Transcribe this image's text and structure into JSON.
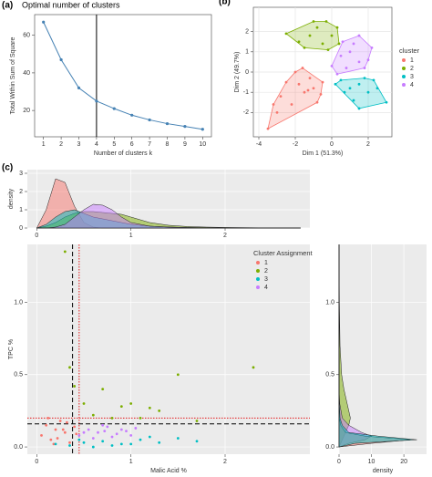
{
  "chart_data": [
    {
      "type": "line",
      "panel": "(a)",
      "title": "Optimal number of clusters",
      "xlabel": "Number of clusters k",
      "ylabel": "Total Within Sum of Square",
      "x": [
        1,
        2,
        3,
        4,
        5,
        6,
        7,
        8,
        9,
        10
      ],
      "values": [
        67,
        47,
        32,
        25,
        21,
        17.5,
        15,
        13,
        11.5,
        10
      ],
      "color": "#4682b4",
      "xlim": [
        0.5,
        10.5
      ],
      "ylim": [
        6,
        71
      ],
      "xticks": [
        1,
        2,
        3,
        4,
        5,
        6,
        7,
        8,
        9,
        10
      ],
      "yticks": [
        20,
        40,
        60
      ],
      "grid": false,
      "background": "#ffffff",
      "reference_lines": [
        {
          "axis": "x",
          "value": 4,
          "color": "#000000",
          "style": "solid"
        }
      ]
    },
    {
      "type": "scatter",
      "panel": "(b)",
      "xlabel": "Dim 1 (51.3%)",
      "ylabel": "Dim 2 (49.7%)",
      "legend_title": "cluster",
      "legend": "right",
      "hulls": true,
      "xlim": [
        -4.3,
        3.3
      ],
      "ylim": [
        -3.2,
        3.2
      ],
      "xticks": [
        -4,
        -2,
        0,
        2
      ],
      "yticks": [
        -2,
        -1,
        0,
        1,
        2
      ],
      "grid": true,
      "background": "#ffffff",
      "series": [
        {
          "name": "1",
          "color": "#f8766d",
          "x": [
            -3.5,
            -3,
            -2.8,
            -2.5,
            -2,
            -1.8,
            -1.5,
            -1.2,
            -1,
            -0.8,
            -0.5,
            -2.2,
            -1.6,
            -0.6,
            -3.2,
            -1.3
          ],
          "values": [
            -2.8,
            -2,
            -1.2,
            -0.5,
            0,
            -0.6,
            -1,
            -0.3,
            -0.8,
            -1.5,
            -0.5,
            -1.6,
            0.2,
            -1.1,
            -1.6,
            -0.9
          ]
        },
        {
          "name": "2",
          "color": "#7cae00",
          "x": [
            -2.5,
            -1.8,
            -1.2,
            -0.8,
            -0.3,
            0,
            -0.5,
            -1.5,
            0.3,
            -1,
            0.4,
            -0.2
          ],
          "values": [
            1.9,
            1.5,
            1.8,
            2.2,
            2.5,
            1.8,
            1.4,
            1.2,
            2.2,
            2.5,
            1.4,
            1.1
          ]
        },
        {
          "name": "3",
          "color": "#00bfc4",
          "x": [
            0.5,
            1,
            1.5,
            2,
            2.5,
            3,
            1.2,
            1.8,
            0.7,
            2.3,
            1.5,
            0.2
          ],
          "values": [
            -0.4,
            -0.8,
            -0.6,
            -1,
            -0.8,
            -1.5,
            -1.4,
            -0.3,
            -1,
            -0.4,
            -1.8,
            -0.6
          ]
        },
        {
          "name": "4",
          "color": "#c77cff",
          "x": [
            0,
            0.5,
            1,
            1.5,
            2,
            0.8,
            1.2,
            0.3,
            1.8,
            2.2,
            0.6,
            1.5
          ],
          "values": [
            0.3,
            0.8,
            1,
            0.5,
            0.6,
            0.2,
            1.4,
            -0.1,
            0.2,
            1.2,
            1.5,
            1.8
          ]
        }
      ]
    },
    {
      "type": "density",
      "panel": "(c)",
      "ylabel": "density",
      "orientation": "vertical",
      "xlim": [
        -0.1,
        2.9
      ],
      "ylim": [
        0,
        3.2
      ],
      "xticks": [
        0,
        1,
        2
      ],
      "yticks": [
        0,
        1,
        2,
        3
      ],
      "grid": true,
      "background": "#ebebeb",
      "x": [
        0,
        0.1,
        0.2,
        0.3,
        0.4,
        0.5,
        0.6,
        0.7,
        0.8,
        0.9,
        1.0,
        1.2,
        1.4,
        1.6,
        1.8,
        2.0,
        2.4,
        2.8
      ],
      "series": [
        {
          "name": "1",
          "color": "#f8766d",
          "values": [
            0,
            1.0,
            2.7,
            2.5,
            1.2,
            0.3,
            0.05,
            0,
            0,
            0,
            0,
            0,
            0,
            0,
            0,
            0,
            0,
            0
          ]
        },
        {
          "name": "2",
          "color": "#7cae00",
          "values": [
            0,
            0.1,
            0.3,
            0.6,
            0.8,
            0.9,
            0.9,
            0.85,
            0.8,
            0.75,
            0.6,
            0.3,
            0.15,
            0.08,
            0.05,
            0.03,
            0.01,
            0
          ]
        },
        {
          "name": "3",
          "color": "#00bfc4",
          "values": [
            0,
            0.2,
            0.6,
            0.9,
            1.0,
            0.8,
            0.6,
            0.5,
            0.4,
            0.3,
            0.2,
            0.1,
            0.05,
            0.03,
            0.02,
            0.01,
            0,
            0
          ]
        },
        {
          "name": "4",
          "color": "#c77cff",
          "values": [
            0,
            0,
            0.05,
            0.2,
            0.6,
            1.0,
            1.3,
            1.25,
            1.0,
            0.6,
            0.3,
            0.1,
            0.05,
            0.02,
            0.01,
            0,
            0,
            0
          ]
        }
      ]
    },
    {
      "type": "scatter",
      "xlabel": "Malic Acid %",
      "ylabel": "TPC %",
      "legend_title": "Cluster Assignment",
      "legend": "top-right",
      "xlim": [
        -0.1,
        2.9
      ],
      "ylim": [
        -0.05,
        1.4
      ],
      "xticks": [
        0,
        1,
        2
      ],
      "yticks": [
        {
          "value": 0,
          "label": "0.0"
        },
        0.5,
        {
          "value": 1,
          "label": "1.0"
        }
      ],
      "grid": true,
      "background": "#ebebeb",
      "reference_lines": [
        {
          "axis": "x",
          "value": 0.38,
          "color": "#000000",
          "style": "dashed"
        },
        {
          "axis": "x",
          "value": 0.45,
          "color": "#e41a1c",
          "style": "dotted"
        },
        {
          "axis": "y",
          "value": 0.16,
          "color": "#000000",
          "style": "dashed"
        },
        {
          "axis": "y",
          "value": 0.2,
          "color": "#e41a1c",
          "style": "dotted"
        }
      ],
      "series": [
        {
          "name": "1",
          "color": "#f8766d",
          "x": [
            0.05,
            0.1,
            0.15,
            0.2,
            0.25,
            0.3,
            0.35,
            0.4,
            0.12,
            0.22,
            0.32,
            0.42,
            0.18,
            0.28
          ],
          "values": [
            0.08,
            0.15,
            0.05,
            0.12,
            0.18,
            0.1,
            0.03,
            0.14,
            0.2,
            0.06,
            0.17,
            0.09,
            0.02,
            0.12
          ]
        },
        {
          "name": "2",
          "color": "#7cae00",
          "x": [
            0.3,
            0.35,
            0.5,
            0.6,
            0.7,
            0.9,
            1.1,
            1.3,
            1.5,
            1.7,
            2.3,
            0.4,
            0.8,
            1.0,
            1.2
          ],
          "values": [
            1.35,
            0.55,
            0.3,
            0.22,
            0.4,
            0.28,
            0.2,
            0.25,
            0.5,
            0.18,
            0.55,
            0.42,
            0.2,
            0.3,
            0.27
          ]
        },
        {
          "name": "3",
          "color": "#00bfc4",
          "x": [
            0.2,
            0.35,
            0.5,
            0.7,
            0.9,
            1.1,
            1.3,
            1.5,
            1.7,
            0.6,
            0.8,
            1.0,
            1.2,
            0.45
          ],
          "values": [
            0.02,
            0.01,
            0.03,
            0.04,
            0.02,
            0.05,
            0.03,
            0.06,
            0.04,
            0.0,
            0.01,
            0.02,
            0.07,
            0.05
          ]
        },
        {
          "name": "4",
          "color": "#c77cff",
          "x": [
            0.45,
            0.55,
            0.65,
            0.75,
            0.85,
            0.95,
            1.05,
            0.6,
            0.7,
            0.8,
            0.9,
            0.5,
            1.0,
            0.72
          ],
          "values": [
            0.08,
            0.12,
            0.1,
            0.14,
            0.09,
            0.11,
            0.13,
            0.06,
            0.15,
            0.07,
            0.12,
            0.1,
            0.08,
            0.11
          ]
        }
      ]
    },
    {
      "type": "density",
      "xlabel": "density",
      "orientation": "horizontal",
      "xlim": [
        0,
        27
      ],
      "ylim": [
        -0.05,
        1.4
      ],
      "xticks": [
        0,
        10,
        20
      ],
      "yticks": [
        {
          "value": 0,
          "label": "0.0"
        },
        0.5,
        {
          "value": 1,
          "label": "1.0"
        }
      ],
      "grid": true,
      "background": "#ebebeb",
      "y": [
        0,
        0.025,
        0.05,
        0.075,
        0.1,
        0.15,
        0.2,
        0.3,
        0.4,
        0.5,
        0.7,
        1.0,
        1.4
      ],
      "series": [
        {
          "name": "2",
          "color": "#7cae00",
          "values": [
            0,
            0.5,
            1,
            1.5,
            2,
            3,
            3.5,
            2.5,
            1.5,
            0.8,
            0.3,
            0.1,
            0
          ]
        },
        {
          "name": "4",
          "color": "#c77cff",
          "values": [
            0,
            3,
            8,
            10,
            7,
            3,
            1,
            0.2,
            0,
            0,
            0,
            0,
            0
          ]
        },
        {
          "name": "1",
          "color": "#f8766d",
          "values": [
            0,
            10,
            22,
            8,
            2,
            0.5,
            0.1,
            0,
            0,
            0,
            0,
            0,
            0
          ]
        },
        {
          "name": "3",
          "color": "#00bfc4",
          "values": [
            0,
            5,
            24,
            12,
            3,
            1,
            0.3,
            0.1,
            0,
            0,
            0,
            0,
            0
          ]
        }
      ]
    }
  ]
}
